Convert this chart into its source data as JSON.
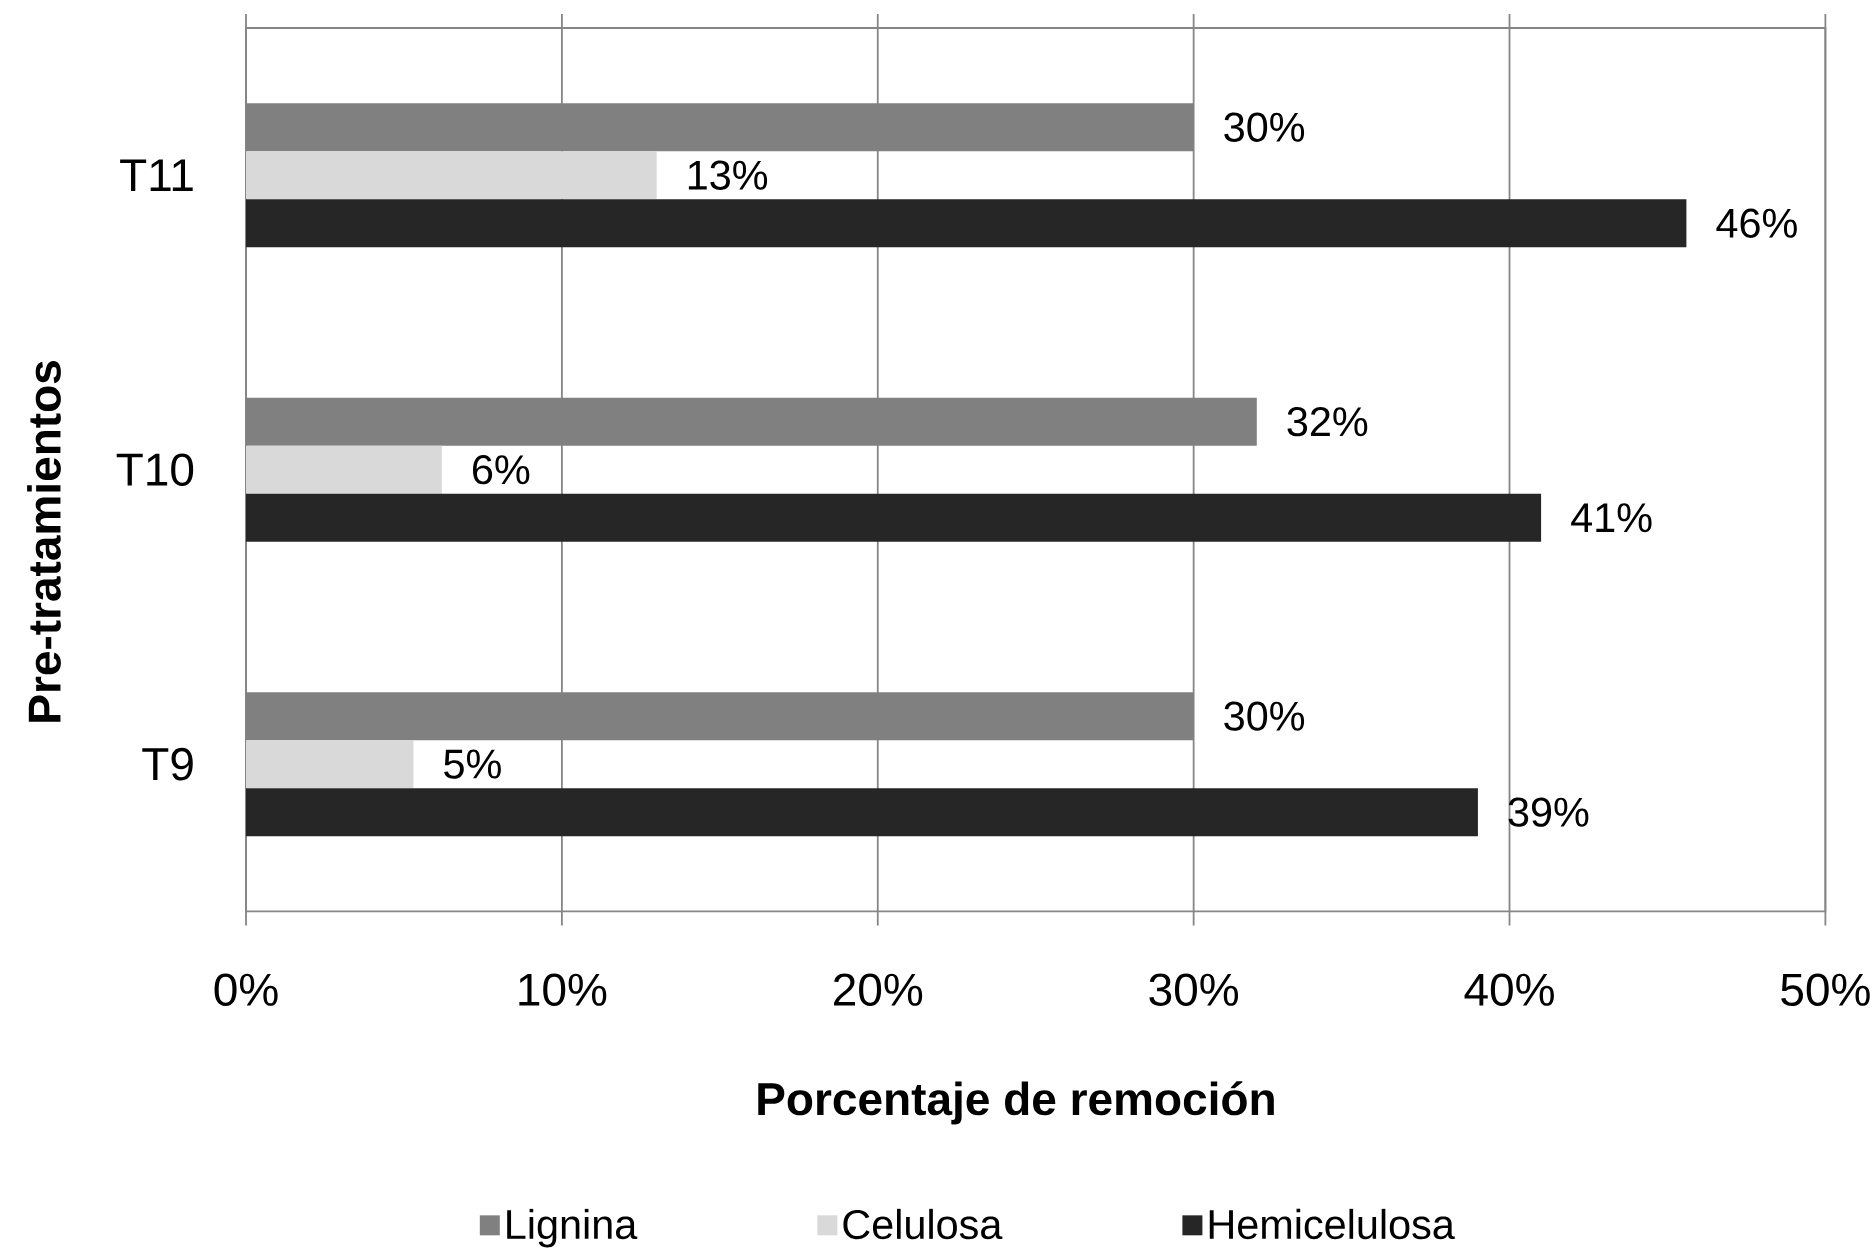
{
  "chart_data": {
    "type": "bar",
    "orientation": "horizontal",
    "categories": [
      "T11",
      "T10",
      "T9"
    ],
    "series": [
      {
        "name": "Lignina",
        "color": "#808080",
        "values": [
          30,
          32,
          30
        ],
        "value_labels": [
          "30%",
          "32%",
          "30%"
        ]
      },
      {
        "name": "Celulosa",
        "color": "#d9d9d9",
        "values": [
          13,
          6.2,
          5.3
        ],
        "value_labels": [
          "13%",
          "6%",
          "5%"
        ]
      },
      {
        "name": "Hemicelulosa",
        "color": "#262626",
        "values": [
          45.6,
          41,
          39
        ],
        "value_labels": [
          "46%",
          "41%",
          "39%"
        ]
      }
    ],
    "xlim": [
      0,
      50
    ],
    "xticks": [
      {
        "value": 0,
        "label": "0%"
      },
      {
        "value": 10,
        "label": "10%"
      },
      {
        "value": 20,
        "label": "20%"
      },
      {
        "value": 30,
        "label": "30%"
      },
      {
        "value": 40,
        "label": "40%"
      },
      {
        "value": 50,
        "label": "50%"
      }
    ],
    "xlabel": "Porcentaje de remoción",
    "ylabel": "Pre-tratamientos",
    "grid": "x",
    "legend": "bottom"
  }
}
